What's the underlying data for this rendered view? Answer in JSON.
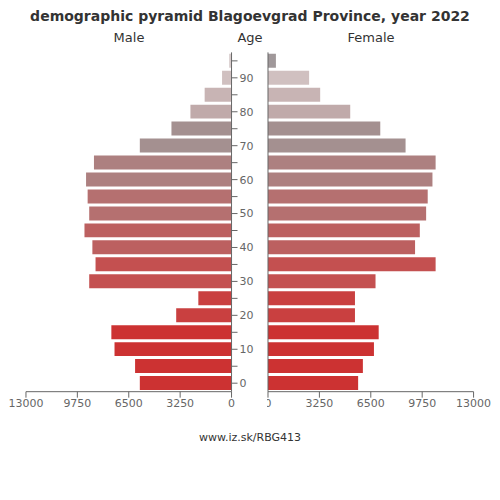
{
  "chart_data": {
    "type": "bar",
    "orientation": "horizontal",
    "title": "demographic pyramid Blagoevgrad Province, year 2022",
    "ylabel": "Age",
    "categories": [
      "0",
      null,
      "10",
      null,
      "20",
      null,
      "30",
      null,
      "40",
      null,
      "50",
      null,
      "60",
      null,
      "70",
      null,
      "80",
      null,
      "90",
      null
    ],
    "series": [
      {
        "name": "Male",
        "values": [
          5800,
          6100,
          7400,
          7600,
          3500,
          2100,
          9000,
          8600,
          8800,
          9300,
          9000,
          9100,
          9200,
          8700,
          5800,
          3800,
          2600,
          1700,
          600,
          150
        ],
        "colors": [
          "#cc3232",
          "#cc3232",
          "#cc3232",
          "#cc3232",
          "#c94040",
          "#c94040",
          "#c45050",
          "#c45050",
          "#bc6060",
          "#bc6060",
          "#b57070",
          "#b57070",
          "#ad8080",
          "#ad8080",
          "#a49090",
          "#a49090",
          "#c0aaaa",
          "#c8b4b4",
          "#d0c0c0",
          "#d8cccc"
        ]
      },
      {
        "name": "Female",
        "values": [
          5700,
          6000,
          6700,
          7000,
          5500,
          5500,
          6800,
          10600,
          9300,
          9600,
          10000,
          10100,
          10400,
          10600,
          8700,
          7100,
          5200,
          3300,
          2600,
          500
        ],
        "colors": [
          "#cc3232",
          "#cc3232",
          "#cc3232",
          "#cc3232",
          "#c94040",
          "#c94040",
          "#c45050",
          "#c45050",
          "#bc6060",
          "#bc6060",
          "#b57070",
          "#b57070",
          "#ad8080",
          "#ad8080",
          "#a49090",
          "#a49090",
          "#c0aaaa",
          "#c8b4b4",
          "#d0c0c0",
          "#a0989a"
        ]
      }
    ],
    "xlim": [
      0,
      13000
    ],
    "xticks": [
      0,
      3250,
      6500,
      9750,
      13000
    ],
    "grid": false,
    "annotations": [
      "www.iz.sk/RBG413"
    ]
  }
}
